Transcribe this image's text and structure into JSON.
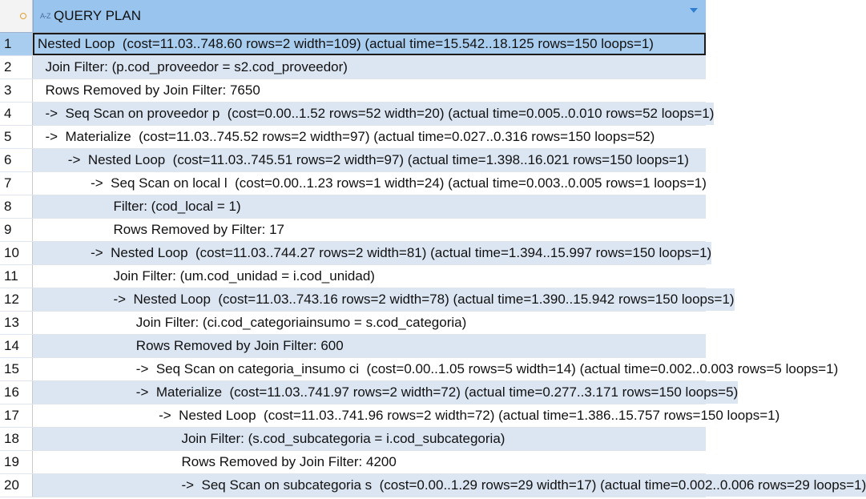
{
  "header": {
    "type_icon": "A-Z",
    "column_title": "QUERY PLAN"
  },
  "rows": [
    {
      "num": "1",
      "text": "Nested Loop  (cost=11.03..748.60 rows=2 width=109) (actual time=15.542..18.125 rows=150 loops=1)",
      "indent": 0,
      "selected": true
    },
    {
      "num": "2",
      "text": "  Join Filter: (p.cod_proveedor = s2.cod_proveedor)",
      "indent": 1
    },
    {
      "num": "3",
      "text": "  Rows Removed by Join Filter: 7650",
      "indent": 1
    },
    {
      "num": "4",
      "text": "  ->  Seq Scan on proveedor p  (cost=0.00..1.52 rows=52 width=20) (actual time=0.005..0.010 rows=52 loops=1)",
      "indent": 1
    },
    {
      "num": "5",
      "text": "  ->  Materialize  (cost=11.03..745.52 rows=2 width=97) (actual time=0.027..0.316 rows=150 loops=52)",
      "indent": 1
    },
    {
      "num": "6",
      "text": "        ->  Nested Loop  (cost=11.03..745.51 rows=2 width=97) (actual time=1.398..16.021 rows=150 loops=1)",
      "indent": 2
    },
    {
      "num": "7",
      "text": "              ->  Seq Scan on local l  (cost=0.00..1.23 rows=1 width=24) (actual time=0.003..0.005 rows=1 loops=1)",
      "indent": 3
    },
    {
      "num": "8",
      "text": "                    Filter: (cod_local = 1)",
      "indent": 4
    },
    {
      "num": "9",
      "text": "                    Rows Removed by Filter: 17",
      "indent": 4
    },
    {
      "num": "10",
      "text": "              ->  Nested Loop  (cost=11.03..744.27 rows=2 width=81) (actual time=1.394..15.997 rows=150 loops=1)",
      "indent": 3
    },
    {
      "num": "11",
      "text": "                    Join Filter: (um.cod_unidad = i.cod_unidad)",
      "indent": 4
    },
    {
      "num": "12",
      "text": "                    ->  Nested Loop  (cost=11.03..743.16 rows=2 width=78) (actual time=1.390..15.942 rows=150 loops=1)",
      "indent": 4
    },
    {
      "num": "13",
      "text": "                          Join Filter: (ci.cod_categoriainsumo = s.cod_categoria)",
      "indent": 5
    },
    {
      "num": "14",
      "text": "                          Rows Removed by Join Filter: 600",
      "indent": 5
    },
    {
      "num": "15",
      "text": "                          ->  Seq Scan on categoria_insumo ci  (cost=0.00..1.05 rows=5 width=14) (actual time=0.002..0.003 rows=5 loops=1)",
      "indent": 5
    },
    {
      "num": "16",
      "text": "                          ->  Materialize  (cost=11.03..741.97 rows=2 width=72) (actual time=0.277..3.171 rows=150 loops=5)",
      "indent": 5
    },
    {
      "num": "17",
      "text": "                                ->  Nested Loop  (cost=11.03..741.96 rows=2 width=72) (actual time=1.386..15.757 rows=150 loops=1)",
      "indent": 6
    },
    {
      "num": "18",
      "text": "                                      Join Filter: (s.cod_subcategoria = i.cod_subcategoria)",
      "indent": 7
    },
    {
      "num": "19",
      "text": "                                      Rows Removed by Join Filter: 4200",
      "indent": 7
    },
    {
      "num": "20",
      "text": "                                      ->  Seq Scan on subcategoria s  (cost=0.00..1.29 rows=29 width=17) (actual time=0.002..0.006 rows=29 loops=1)",
      "indent": 7
    }
  ]
}
